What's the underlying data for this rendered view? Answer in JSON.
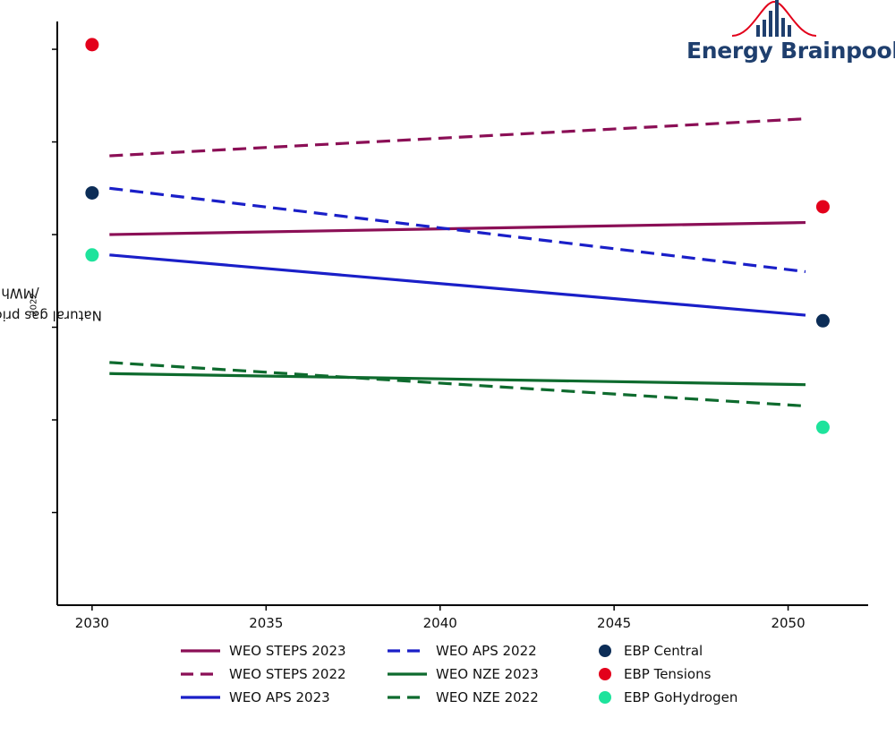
{
  "logo": {
    "brand_text": "Energy Brainpool",
    "brand_color": "#1f3f6e",
    "accent_color": "#e2001a"
  },
  "chart_data": {
    "type": "line",
    "title": "",
    "xlabel": "",
    "ylabel_prefix": "Natural gas price in EUR",
    "ylabel_sub": "2022",
    "ylabel_suffix": "/MWh",
    "xlim": [
      2029,
      2052.3
    ],
    "ylim": [
      0,
      6.3
    ],
    "y_ticks": [
      1,
      2,
      3,
      4,
      5,
      6
    ],
    "y_tick_labels_shown": false,
    "x_ticks": [
      2030,
      2035,
      2040,
      2045,
      2050
    ],
    "x_tick_labels": [
      "2030",
      "2035",
      "2040",
      "2045",
      "2050"
    ],
    "grid": false,
    "legend_position": "bottom",
    "series": [
      {
        "name": "WEO STEPS 2023",
        "style": "solid",
        "color": "#8b0f56",
        "x": [
          2030.5,
          2050.5
        ],
        "y": [
          4.0,
          4.13
        ]
      },
      {
        "name": "WEO STEPS 2022",
        "style": "dashed",
        "color": "#8b0f56",
        "x": [
          2030.5,
          2050.5
        ],
        "y": [
          4.85,
          5.25
        ]
      },
      {
        "name": "WEO APS 2023",
        "style": "solid",
        "color": "#1a1fc8",
        "x": [
          2030.5,
          2050.5
        ],
        "y": [
          3.78,
          3.13
        ]
      },
      {
        "name": "WEO APS 2022",
        "style": "dashed",
        "color": "#1a1fc8",
        "x": [
          2030.5,
          2050.5
        ],
        "y": [
          4.5,
          3.6
        ]
      },
      {
        "name": "WEO NZE 2023",
        "style": "solid",
        "color": "#0e6b2e",
        "x": [
          2030.5,
          2050.5
        ],
        "y": [
          2.5,
          2.38
        ]
      },
      {
        "name": "WEO NZE 2022",
        "style": "dashed",
        "color": "#0e6b2e",
        "x": [
          2030.5,
          2050.5
        ],
        "y": [
          2.62,
          2.15
        ]
      }
    ],
    "scatter": [
      {
        "name": "EBP Central",
        "color": "#0c2d57",
        "x": [
          2030,
          2051
        ],
        "y": [
          4.45,
          3.07
        ]
      },
      {
        "name": "EBP Tensions",
        "color": "#e3001b",
        "x": [
          2030,
          2051
        ],
        "y": [
          6.05,
          4.3
        ]
      },
      {
        "name": "EBP GoHydrogen",
        "color": "#1ee39c",
        "x": [
          2030,
          2051
        ],
        "y": [
          3.78,
          1.92
        ]
      }
    ]
  }
}
